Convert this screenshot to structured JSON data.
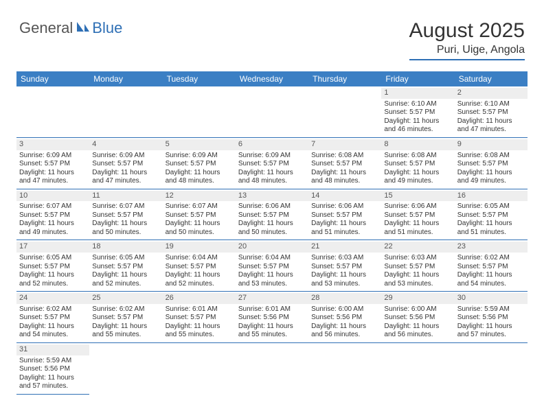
{
  "logo": {
    "text1": "General",
    "text2": "Blue"
  },
  "title": {
    "monthYear": "August 2025",
    "location": "Puri, Uige, Angola"
  },
  "colors": {
    "headerBar": "#3b7fc4",
    "accent": "#2e6fb5",
    "dayNumBg": "#eeeeee",
    "textPrimary": "#333333",
    "logoBlue": "#2e6fb5"
  },
  "weekdays": [
    "Sunday",
    "Monday",
    "Tuesday",
    "Wednesday",
    "Thursday",
    "Friday",
    "Saturday"
  ],
  "startOffset": 5,
  "labels": {
    "sunrise": "Sunrise: ",
    "sunset": "Sunset: ",
    "daylightPrefix": "Daylight: ",
    "daylightHoursWord": " hours",
    "daylightAnd": "and ",
    "daylightMinutesWord": " minutes."
  },
  "days": [
    {
      "n": 1,
      "sunrise": "6:10 AM",
      "sunset": "5:57 PM",
      "dh": 11,
      "dm": 46
    },
    {
      "n": 2,
      "sunrise": "6:10 AM",
      "sunset": "5:57 PM",
      "dh": 11,
      "dm": 47
    },
    {
      "n": 3,
      "sunrise": "6:09 AM",
      "sunset": "5:57 PM",
      "dh": 11,
      "dm": 47
    },
    {
      "n": 4,
      "sunrise": "6:09 AM",
      "sunset": "5:57 PM",
      "dh": 11,
      "dm": 47
    },
    {
      "n": 5,
      "sunrise": "6:09 AM",
      "sunset": "5:57 PM",
      "dh": 11,
      "dm": 48
    },
    {
      "n": 6,
      "sunrise": "6:09 AM",
      "sunset": "5:57 PM",
      "dh": 11,
      "dm": 48
    },
    {
      "n": 7,
      "sunrise": "6:08 AM",
      "sunset": "5:57 PM",
      "dh": 11,
      "dm": 48
    },
    {
      "n": 8,
      "sunrise": "6:08 AM",
      "sunset": "5:57 PM",
      "dh": 11,
      "dm": 49
    },
    {
      "n": 9,
      "sunrise": "6:08 AM",
      "sunset": "5:57 PM",
      "dh": 11,
      "dm": 49
    },
    {
      "n": 10,
      "sunrise": "6:07 AM",
      "sunset": "5:57 PM",
      "dh": 11,
      "dm": 49
    },
    {
      "n": 11,
      "sunrise": "6:07 AM",
      "sunset": "5:57 PM",
      "dh": 11,
      "dm": 50
    },
    {
      "n": 12,
      "sunrise": "6:07 AM",
      "sunset": "5:57 PM",
      "dh": 11,
      "dm": 50
    },
    {
      "n": 13,
      "sunrise": "6:06 AM",
      "sunset": "5:57 PM",
      "dh": 11,
      "dm": 50
    },
    {
      "n": 14,
      "sunrise": "6:06 AM",
      "sunset": "5:57 PM",
      "dh": 11,
      "dm": 51
    },
    {
      "n": 15,
      "sunrise": "6:06 AM",
      "sunset": "5:57 PM",
      "dh": 11,
      "dm": 51
    },
    {
      "n": 16,
      "sunrise": "6:05 AM",
      "sunset": "5:57 PM",
      "dh": 11,
      "dm": 51
    },
    {
      "n": 17,
      "sunrise": "6:05 AM",
      "sunset": "5:57 PM",
      "dh": 11,
      "dm": 52
    },
    {
      "n": 18,
      "sunrise": "6:05 AM",
      "sunset": "5:57 PM",
      "dh": 11,
      "dm": 52
    },
    {
      "n": 19,
      "sunrise": "6:04 AM",
      "sunset": "5:57 PM",
      "dh": 11,
      "dm": 52
    },
    {
      "n": 20,
      "sunrise": "6:04 AM",
      "sunset": "5:57 PM",
      "dh": 11,
      "dm": 53
    },
    {
      "n": 21,
      "sunrise": "6:03 AM",
      "sunset": "5:57 PM",
      "dh": 11,
      "dm": 53
    },
    {
      "n": 22,
      "sunrise": "6:03 AM",
      "sunset": "5:57 PM",
      "dh": 11,
      "dm": 53
    },
    {
      "n": 23,
      "sunrise": "6:02 AM",
      "sunset": "5:57 PM",
      "dh": 11,
      "dm": 54
    },
    {
      "n": 24,
      "sunrise": "6:02 AM",
      "sunset": "5:57 PM",
      "dh": 11,
      "dm": 54
    },
    {
      "n": 25,
      "sunrise": "6:02 AM",
      "sunset": "5:57 PM",
      "dh": 11,
      "dm": 55
    },
    {
      "n": 26,
      "sunrise": "6:01 AM",
      "sunset": "5:57 PM",
      "dh": 11,
      "dm": 55
    },
    {
      "n": 27,
      "sunrise": "6:01 AM",
      "sunset": "5:56 PM",
      "dh": 11,
      "dm": 55
    },
    {
      "n": 28,
      "sunrise": "6:00 AM",
      "sunset": "5:56 PM",
      "dh": 11,
      "dm": 56
    },
    {
      "n": 29,
      "sunrise": "6:00 AM",
      "sunset": "5:56 PM",
      "dh": 11,
      "dm": 56
    },
    {
      "n": 30,
      "sunrise": "5:59 AM",
      "sunset": "5:56 PM",
      "dh": 11,
      "dm": 57
    },
    {
      "n": 31,
      "sunrise": "5:59 AM",
      "sunset": "5:56 PM",
      "dh": 11,
      "dm": 57
    }
  ]
}
